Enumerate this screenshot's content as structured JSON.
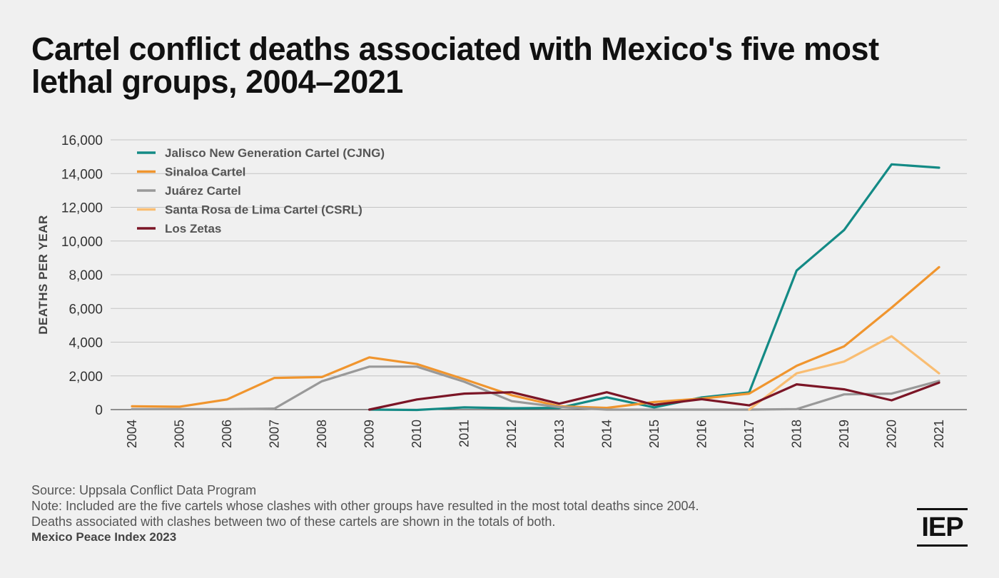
{
  "title": "Cartel conflict deaths associated with Mexico's five most lethal groups, 2004–2021",
  "footer": {
    "source": "Source: Uppsala Conflict Data Program",
    "note1": "Note: Included are the five cartels whose clashes with other groups have resulted in the most total deaths since 2004.",
    "note2": "Deaths associated with clashes between two of these cartels are shown in the totals of both.",
    "publication": "Mexico Peace Index 2023"
  },
  "logo_text": "IEP",
  "chart_data": {
    "type": "line",
    "title": "Cartel conflict deaths associated with Mexico's five most lethal groups, 2004–2021",
    "xlabel": "",
    "ylabel": "DEATHS PER YEAR",
    "ylim": [
      0,
      16000
    ],
    "yticks": [
      0,
      2000,
      4000,
      6000,
      8000,
      10000,
      12000,
      14000,
      16000
    ],
    "ytick_labels": [
      "0",
      "2,000",
      "4,000",
      "6,000",
      "8,000",
      "10,000",
      "12,000",
      "14,000",
      "16,000"
    ],
    "x": [
      "2004",
      "2005",
      "2006",
      "2007",
      "2008",
      "2009",
      "2010",
      "2011",
      "2012",
      "2013",
      "2014",
      "2015",
      "2016",
      "2017",
      "2018",
      "2019",
      "2020",
      "2021"
    ],
    "grid": "horizontal",
    "legend_position": "top-left",
    "series": [
      {
        "name": "Jalisco New Generation Cartel (CJNG)",
        "color": "#138a85",
        "values": [
          null,
          null,
          null,
          null,
          null,
          0,
          -20,
          130,
          80,
          100,
          730,
          130,
          720,
          1020,
          8250,
          10650,
          14550,
          14350
        ]
      },
      {
        "name": "Sinaloa Cartel",
        "color": "#f0952e",
        "values": [
          200,
          170,
          600,
          1880,
          1930,
          3100,
          2700,
          1800,
          850,
          200,
          100,
          450,
          650,
          950,
          2600,
          3750,
          6050,
          8450
        ]
      },
      {
        "name": "Juárez Cartel",
        "color": "#999999",
        "values": [
          30,
          30,
          30,
          60,
          1680,
          2550,
          2550,
          1650,
          500,
          150,
          0,
          0,
          0,
          0,
          30,
          900,
          950,
          1700
        ]
      },
      {
        "name": "Santa Rosa de Lima Cartel (CSRL)",
        "color": "#f9bd72",
        "values": [
          null,
          null,
          null,
          null,
          null,
          null,
          null,
          null,
          null,
          null,
          null,
          null,
          null,
          0,
          2150,
          2850,
          4350,
          2150
        ]
      },
      {
        "name": "Los Zetas",
        "color": "#7b1526",
        "values": [
          null,
          null,
          null,
          null,
          null,
          0,
          600,
          950,
          1030,
          350,
          1030,
          280,
          620,
          250,
          1500,
          1200,
          550,
          1600
        ]
      }
    ]
  }
}
